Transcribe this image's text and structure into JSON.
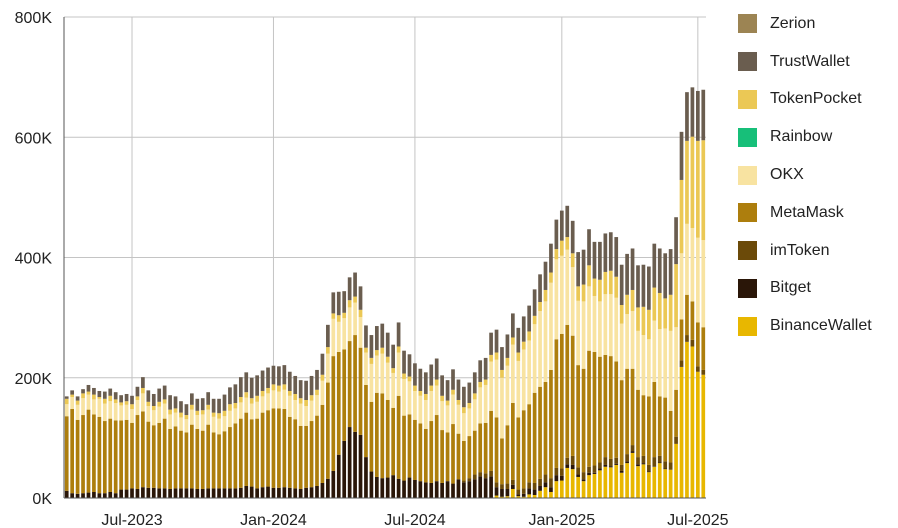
{
  "chart_data": {
    "type": "bar",
    "stacked": true,
    "grid": true,
    "legend_position": "right",
    "title": "",
    "xlabel": "",
    "ylabel": "",
    "ylim": [
      0,
      800000
    ],
    "y_ticks": [
      {
        "value": 0,
        "label": "0K"
      },
      {
        "value": 200000,
        "label": "200K"
      },
      {
        "value": 400000,
        "label": "400K"
      },
      {
        "value": 600000,
        "label": "600K"
      },
      {
        "value": 800000,
        "label": "800K"
      }
    ],
    "x_ticks": [
      {
        "week": "2023-07-03",
        "label": "Jul-2023"
      },
      {
        "week": "2024-01-01",
        "label": "Jan-2024"
      },
      {
        "week": "2024-07-01",
        "label": "Jul-2024"
      },
      {
        "week": "2025-01-06",
        "label": "Jan-2025"
      },
      {
        "week": "2025-06-30",
        "label": "Jul-2025"
      }
    ],
    "series": [
      {
        "name": "BinanceWallet",
        "color": "#E8B700"
      },
      {
        "name": "Bitget",
        "color": "#2A1608"
      },
      {
        "name": "imToken",
        "color": "#6B4A09"
      },
      {
        "name": "MetaMask",
        "color": "#AD7E0D"
      },
      {
        "name": "OKX",
        "color": "#F8E3A1"
      },
      {
        "name": "Rainbow",
        "color": "#17BF79"
      },
      {
        "name": "TokenPocket",
        "color": "#EBC855"
      },
      {
        "name": "TrustWallet",
        "color": "#6A5D4F"
      },
      {
        "name": "Zerion",
        "color": "#9C8453"
      }
    ],
    "legend_order": [
      "Zerion",
      "TrustWallet",
      "TokenPocket",
      "Rainbow",
      "OKX",
      "MetaMask",
      "imToken",
      "Bitget",
      "BinanceWallet"
    ],
    "weeks": [
      "2023-04-10",
      "2023-04-17",
      "2023-04-24",
      "2023-05-01",
      "2023-05-08",
      "2023-05-15",
      "2023-05-22",
      "2023-05-29",
      "2023-06-05",
      "2023-06-12",
      "2023-06-19",
      "2023-06-26",
      "2023-07-03",
      "2023-07-10",
      "2023-07-17",
      "2023-07-24",
      "2023-07-31",
      "2023-08-07",
      "2023-08-14",
      "2023-08-21",
      "2023-08-28",
      "2023-09-04",
      "2023-09-11",
      "2023-09-18",
      "2023-09-25",
      "2023-10-02",
      "2023-10-09",
      "2023-10-16",
      "2023-10-23",
      "2023-10-30",
      "2023-11-06",
      "2023-11-13",
      "2023-11-20",
      "2023-11-27",
      "2023-12-04",
      "2023-12-11",
      "2023-12-18",
      "2023-12-25",
      "2024-01-01",
      "2024-01-08",
      "2024-01-15",
      "2024-01-22",
      "2024-01-29",
      "2024-02-05",
      "2024-02-12",
      "2024-02-19",
      "2024-02-26",
      "2024-03-04",
      "2024-03-11",
      "2024-03-18",
      "2024-03-25",
      "2024-04-01",
      "2024-04-08",
      "2024-04-15",
      "2024-04-22",
      "2024-04-29",
      "2024-05-06",
      "2024-05-13",
      "2024-05-20",
      "2024-05-27",
      "2024-06-03",
      "2024-06-10",
      "2024-06-17",
      "2024-06-24",
      "2024-07-01",
      "2024-07-08",
      "2024-07-15",
      "2024-07-22",
      "2024-07-29",
      "2024-08-05",
      "2024-08-12",
      "2024-08-19",
      "2024-08-26",
      "2024-09-02",
      "2024-09-09",
      "2024-09-16",
      "2024-09-23",
      "2024-09-30",
      "2024-10-07",
      "2024-10-14",
      "2024-10-21",
      "2024-10-28",
      "2024-11-04",
      "2024-11-11",
      "2024-11-18",
      "2024-11-25",
      "2024-12-02",
      "2024-12-09",
      "2024-12-16",
      "2024-12-23",
      "2024-12-30",
      "2025-01-06",
      "2025-01-13",
      "2025-01-20",
      "2025-01-27",
      "2025-02-03",
      "2025-02-10",
      "2025-02-17",
      "2025-02-24",
      "2025-03-03",
      "2025-03-10",
      "2025-03-17",
      "2025-03-24",
      "2025-03-31",
      "2025-04-07",
      "2025-04-14",
      "2025-04-21",
      "2025-04-28",
      "2025-05-05",
      "2025-05-12",
      "2025-05-19",
      "2025-05-26",
      "2025-06-02",
      "2025-06-09",
      "2025-06-16",
      "2025-06-23",
      "2025-06-30",
      "2025-07-07"
    ],
    "values": {
      "BinanceWallet": [
        0,
        0,
        0,
        0,
        0,
        0,
        0,
        0,
        0,
        0,
        0,
        0,
        0,
        0,
        0,
        0,
        0,
        0,
        0,
        0,
        0,
        0,
        0,
        0,
        0,
        0,
        0,
        0,
        0,
        0,
        0,
        0,
        0,
        0,
        0,
        0,
        0,
        0,
        0,
        0,
        0,
        0,
        0,
        0,
        0,
        0,
        0,
        0,
        0,
        0,
        0,
        0,
        0,
        0,
        0,
        0,
        0,
        0,
        0,
        0,
        0,
        0,
        0,
        0,
        0,
        0,
        0,
        0,
        0,
        0,
        0,
        0,
        0,
        0,
        0,
        0,
        0,
        0,
        0,
        4000,
        2000,
        3000,
        15000,
        3000,
        2000,
        6000,
        5000,
        12000,
        18000,
        10000,
        28000,
        29000,
        50000,
        48000,
        35000,
        28000,
        38000,
        40000,
        46000,
        52000,
        51000,
        55000,
        42000,
        58000,
        75000,
        53000,
        56000,
        43000,
        52000,
        58000,
        48000,
        47000,
        90000,
        218000,
        260000,
        252000,
        210000,
        205000
      ],
      "Bitget": [
        12000,
        8000,
        7000,
        8000,
        9000,
        10000,
        8000,
        8000,
        10000,
        8000,
        14000,
        14000,
        16000,
        15000,
        18000,
        17000,
        17000,
        16000,
        16000,
        15000,
        16000,
        16000,
        16000,
        16000,
        15000,
        15000,
        16000,
        16000,
        16000,
        16000,
        16000,
        16000,
        17000,
        20000,
        19000,
        16000,
        18000,
        19000,
        17000,
        17000,
        18000,
        17000,
        16000,
        15000,
        17000,
        18000,
        20000,
        25000,
        32000,
        45000,
        72000,
        95000,
        118000,
        110000,
        105000,
        68000,
        44000,
        35000,
        33000,
        34000,
        38000,
        32000,
        29000,
        34000,
        30000,
        28000,
        26000,
        25000,
        28000,
        25000,
        28000,
        24000,
        31000,
        26000,
        28000,
        31000,
        36000,
        33000,
        36000,
        14000,
        13000,
        12000,
        7000,
        3000,
        5000,
        10000,
        9000,
        8000,
        8000,
        8000,
        10000,
        8000,
        6000,
        7000,
        4000,
        3000,
        4000,
        2000,
        3000,
        3000,
        2000,
        2000,
        3000,
        3000,
        3000,
        3000,
        2000,
        1000,
        1000,
        1000,
        1000,
        0,
        0,
        1000,
        1000,
        0,
        0,
        0
      ],
      "imToken": [
        0,
        0,
        0,
        0,
        0,
        0,
        0,
        0,
        0,
        0,
        0,
        0,
        0,
        0,
        0,
        0,
        0,
        0,
        0,
        0,
        0,
        0,
        0,
        0,
        0,
        0,
        0,
        0,
        0,
        0,
        0,
        0,
        0,
        0,
        0,
        0,
        0,
        0,
        0,
        0,
        0,
        0,
        0,
        0,
        0,
        0,
        0,
        0,
        0,
        0,
        0,
        0,
        0,
        0,
        0,
        0,
        0,
        0,
        0,
        0,
        0,
        0,
        0,
        0,
        0,
        0,
        0,
        0,
        0,
        0,
        0,
        0,
        0,
        3000,
        5000,
        8000,
        7000,
        8000,
        9000,
        8000,
        8000,
        9000,
        8000,
        8000,
        9000,
        10000,
        11000,
        12000,
        13000,
        15000,
        12000,
        12000,
        11000,
        15000,
        12000,
        12000,
        10000,
        12000,
        10000,
        13000,
        12000,
        10000,
        10000,
        12000,
        10000,
        12000,
        12000,
        11000,
        15000,
        11000,
        12000,
        12000,
        12000,
        10000,
        10000,
        11000,
        9000,
        8000
      ],
      "MetaMask": [
        124000,
        140000,
        123000,
        130000,
        138000,
        129000,
        127000,
        120000,
        122000,
        121000,
        115000,
        116000,
        109000,
        123000,
        126000,
        110000,
        104000,
        109000,
        116000,
        100000,
        103000,
        96000,
        93000,
        106000,
        100000,
        97000,
        106000,
        93000,
        90000,
        95000,
        102000,
        108000,
        115000,
        122000,
        112000,
        116000,
        124000,
        127000,
        132000,
        132000,
        130000,
        118000,
        115000,
        105000,
        103000,
        110000,
        117000,
        130000,
        160000,
        191000,
        171000,
        152000,
        143000,
        161000,
        145000,
        120000,
        116000,
        140000,
        141000,
        129000,
        112000,
        138000,
        108000,
        105000,
        100000,
        96000,
        89000,
        103000,
        110000,
        88000,
        81000,
        99000,
        76000,
        66000,
        70000,
        73000,
        81000,
        84000,
        100000,
        108000,
        76000,
        97000,
        128000,
        120000,
        130000,
        130000,
        150000,
        153000,
        154000,
        180000,
        214000,
        224000,
        221000,
        200000,
        170000,
        172000,
        193000,
        189000,
        176000,
        170000,
        171000,
        160000,
        141000,
        142000,
        127000,
        112000,
        101000,
        114000,
        125000,
        99000,
        106000,
        86000,
        78000,
        68000,
        67000,
        64000,
        73000,
        71000
      ],
      "OKX": [
        20000,
        20000,
        25000,
        28000,
        25000,
        25000,
        30000,
        29000,
        29000,
        29000,
        25000,
        25000,
        23000,
        25000,
        30000,
        26000,
        25000,
        27000,
        25000,
        24000,
        23000,
        22000,
        22000,
        25000,
        23000,
        27000,
        25000,
        26000,
        26000,
        25000,
        27000,
        25000,
        27000,
        25000,
        26000,
        28000,
        27000,
        28000,
        30000,
        28000,
        32000,
        35000,
        32000,
        37000,
        33000,
        34000,
        34000,
        40000,
        48000,
        62000,
        50000,
        52000,
        56000,
        54000,
        51000,
        54000,
        63000,
        62000,
        66000,
        62000,
        58000,
        72000,
        61000,
        55000,
        48000,
        46000,
        48000,
        50000,
        49000,
        48000,
        45000,
        49000,
        48000,
        46000,
        46000,
        52000,
        60000,
        63000,
        82000,
        96000,
        101000,
        99000,
        97000,
        94000,
        101000,
        106000,
        114000,
        126000,
        134000,
        145000,
        133000,
        130000,
        125000,
        114000,
        107000,
        112000,
        107000,
        93000,
        92000,
        101000,
        103000,
        106000,
        94000,
        91000,
        96000,
        98000,
        100000,
        95000,
        102000,
        112000,
        115000,
        133000,
        104000,
        110000,
        118000,
        122000,
        141000,
        145000
      ],
      "Rainbow": [
        0,
        0,
        0,
        0,
        0,
        0,
        0,
        0,
        0,
        0,
        0,
        0,
        0,
        0,
        0,
        0,
        0,
        0,
        0,
        0,
        0,
        0,
        0,
        0,
        0,
        0,
        0,
        0,
        0,
        0,
        0,
        0,
        0,
        0,
        0,
        0,
        0,
        0,
        0,
        0,
        0,
        0,
        0,
        0,
        0,
        0,
        0,
        0,
        0,
        0,
        0,
        0,
        0,
        0,
        0,
        0,
        0,
        0,
        0,
        0,
        0,
        0,
        0,
        0,
        0,
        0,
        0,
        0,
        0,
        0,
        0,
        0,
        0,
        0,
        0,
        0,
        0,
        0,
        0,
        0,
        0,
        0,
        0,
        0,
        0,
        0,
        0,
        0,
        0,
        0,
        0,
        0,
        0,
        0,
        0,
        0,
        0,
        0,
        0,
        0,
        0,
        0,
        0,
        0,
        0,
        0,
        0,
        0,
        0,
        0,
        0,
        0,
        0,
        0,
        0,
        0,
        0,
        0
      ],
      "TokenPocket": [
        9000,
        4000,
        7000,
        8000,
        5000,
        8000,
        3000,
        8000,
        9000,
        6000,
        5000,
        6000,
        8000,
        6000,
        9000,
        7000,
        7000,
        8000,
        7000,
        8000,
        7000,
        8000,
        7000,
        8000,
        7000,
        7000,
        8000,
        7000,
        9000,
        9000,
        11000,
        9000,
        9000,
        9000,
        9000,
        10000,
        9000,
        9000,
        10000,
        10000,
        9000,
        8000,
        10000,
        9000,
        10000,
        9000,
        9000,
        10000,
        11000,
        9000,
        11000,
        9000,
        12000,
        10000,
        12000,
        8000,
        10000,
        9000,
        10000,
        10000,
        8000,
        10000,
        9000,
        8000,
        9000,
        8000,
        10000,
        9000,
        10000,
        9000,
        8000,
        8000,
        8000,
        10000,
        9000,
        10000,
        9000,
        9000,
        11000,
        12000,
        13000,
        13000,
        12000,
        14000,
        13000,
        15000,
        14000,
        15000,
        19000,
        17000,
        17000,
        25000,
        21000,
        23000,
        24000,
        28000,
        35000,
        29000,
        36000,
        37000,
        39000,
        35000,
        31000,
        32000,
        35000,
        39000,
        47000,
        49000,
        55000,
        60000,
        50000,
        60000,
        105000,
        122000,
        138000,
        152000,
        161000,
        166000
      ],
      "TrustWallet": [
        4000,
        7000,
        7000,
        7000,
        11000,
        11000,
        10000,
        12000,
        12000,
        12000,
        12000,
        12000,
        14000,
        16000,
        18000,
        19000,
        20000,
        22000,
        23000,
        24000,
        20000,
        19000,
        18000,
        19000,
        20000,
        20000,
        21000,
        23000,
        24000,
        27000,
        28000,
        31000,
        33000,
        33000,
        34000,
        34000,
        34000,
        34000,
        31000,
        32000,
        32000,
        32000,
        30000,
        30000,
        32000,
        32000,
        33000,
        35000,
        37000,
        35000,
        39000,
        36000,
        38000,
        40000,
        39000,
        37000,
        38000,
        40000,
        40000,
        40000,
        39000,
        40000,
        38000,
        37000,
        37000,
        37000,
        36000,
        35000,
        35000,
        34000,
        34000,
        34000,
        34000,
        34000,
        34000,
        35000,
        36000,
        36000,
        37000,
        38000,
        38000,
        39000,
        40000,
        41000,
        42000,
        43000,
        44000,
        46000,
        47000,
        48000,
        49000,
        50000,
        52000,
        54000,
        57000,
        58000,
        60000,
        61000,
        63000,
        64000,
        64000,
        66000,
        67000,
        68000,
        69000,
        70000,
        70000,
        72000,
        73000,
        74000,
        75000,
        76000,
        78000,
        80000,
        81000,
        82000,
        83000,
        84000
      ],
      "Zerion": [
        0,
        0,
        0,
        0,
        0,
        0,
        0,
        0,
        0,
        0,
        0,
        0,
        0,
        0,
        0,
        0,
        0,
        0,
        0,
        0,
        0,
        0,
        0,
        0,
        0,
        0,
        0,
        0,
        0,
        0,
        0,
        0,
        0,
        0,
        0,
        0,
        0,
        0,
        0,
        0,
        0,
        0,
        0,
        0,
        0,
        0,
        0,
        0,
        0,
        0,
        0,
        0,
        0,
        0,
        0,
        0,
        0,
        0,
        0,
        0,
        0,
        0,
        0,
        0,
        0,
        0,
        0,
        0,
        0,
        0,
        0,
        0,
        0,
        0,
        0,
        0,
        0,
        0,
        0,
        0,
        0,
        0,
        0,
        0,
        0,
        0,
        0,
        0,
        0,
        0,
        0,
        0,
        0,
        0,
        0,
        0,
        0,
        0,
        0,
        0,
        0,
        0,
        0,
        0,
        0,
        0,
        0,
        0,
        0,
        0,
        0,
        0,
        0,
        0,
        0,
        0,
        0,
        0
      ]
    }
  }
}
